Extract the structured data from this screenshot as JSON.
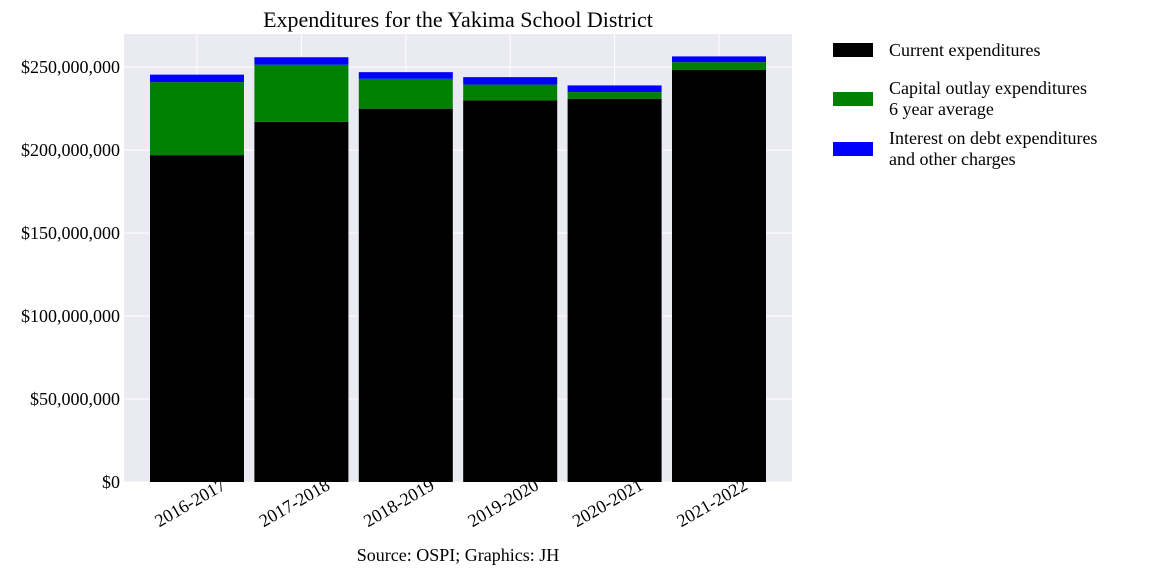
{
  "chart_data": {
    "type": "bar",
    "stacked": true,
    "title": "Expenditures for the Yakima School District",
    "source": "Source: OSPI; Graphics: JH",
    "xlabel": "",
    "ylabel": "",
    "ylim": [
      0,
      270000000
    ],
    "yticks": [
      0,
      50000000,
      100000000,
      150000000,
      200000000,
      250000000
    ],
    "ytick_labels": [
      "$0",
      "$50,000,000",
      "$100,000,000",
      "$150,000,000",
      "$200,000,000",
      "$250,000,000"
    ],
    "categories": [
      "2016-2017",
      "2017-2018",
      "2018-2019",
      "2019-2020",
      "2020-2021",
      "2021-2022"
    ],
    "grid": true,
    "legend_position": "outside-top-right",
    "series": [
      {
        "name": "Current expenditures",
        "color": "#000000",
        "values": [
          197000000,
          217000000,
          225000000,
          230000000,
          231000000,
          248500000
        ]
      },
      {
        "name": "Capital outlay expenditures\n6 year average",
        "color": "#008000",
        "values": [
          44000000,
          34500000,
          18000000,
          9500000,
          4000000,
          4500000
        ]
      },
      {
        "name": "Interest on debt expenditures\nand other charges",
        "color": "#0000ff",
        "values": [
          4500000,
          4500000,
          4000000,
          4500000,
          4000000,
          3500000
        ]
      }
    ]
  }
}
